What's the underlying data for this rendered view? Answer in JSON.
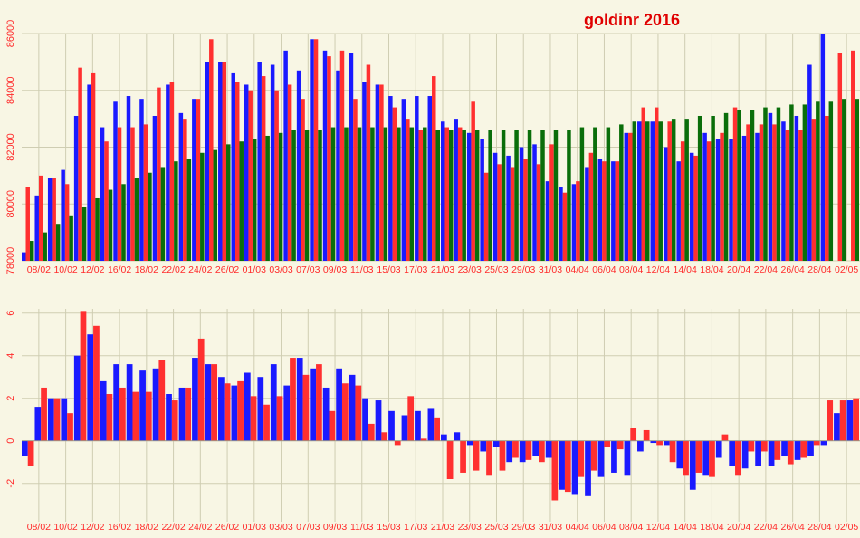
{
  "colors": {
    "background": "#f8f6e4",
    "grid": "#cfcdb2",
    "tick_text": "#ff2b2b",
    "title": "#e00000",
    "blue": "#1a1aff",
    "red": "#ff3030",
    "green": "#0a6e0a"
  },
  "chart_data": [
    {
      "type": "bar",
      "title": "goldinr 2016",
      "ylim": [
        78000,
        86000
      ],
      "yticks": [
        "78000",
        "80000",
        "82000",
        "84000",
        "86000"
      ],
      "xtick_labels": [
        "08/02",
        "10/02",
        "12/02",
        "16/02",
        "18/02",
        "22/02",
        "24/02",
        "26/02",
        "01/03",
        "03/03",
        "07/03",
        "09/03",
        "11/03",
        "15/03",
        "17/03",
        "21/03",
        "23/03",
        "25/03",
        "29/03",
        "31/03",
        "04/04",
        "06/04",
        "08/04",
        "12/04",
        "14/04",
        "18/04",
        "20/04",
        "22/04",
        "26/04",
        "28/04",
        "02/05"
      ],
      "grid": true,
      "series": [
        {
          "color": "blue",
          "values": [
            78300,
            80300,
            80900,
            81200,
            83100,
            84200,
            82700,
            83600,
            83800,
            83700,
            83100,
            84200,
            83200,
            83700,
            85000,
            85000,
            84600,
            84200,
            85000,
            84900,
            85400,
            84700,
            85800,
            85400,
            84700,
            85300,
            84300,
            84200,
            83800,
            83700,
            83800,
            83800,
            82900,
            83000,
            82500,
            82300,
            81800,
            81700,
            82000,
            82100,
            80800,
            80600,
            80700,
            81300,
            81600,
            81500,
            82500,
            82900,
            82900,
            82000,
            81500,
            81800,
            82500,
            82300,
            82300,
            82400,
            82500,
            83200,
            82900,
            83100,
            84900,
            86000
          ]
        },
        {
          "color": "red",
          "values": [
            80600,
            81000,
            80900,
            80700,
            84800,
            84600,
            82200,
            82700,
            82700,
            82800,
            84100,
            84300,
            83000,
            83700,
            85800,
            85000,
            84300,
            84000,
            84500,
            84000,
            84200,
            83700,
            85800,
            85200,
            85400,
            83700,
            84900,
            84200,
            83400,
            83000,
            82600,
            84500,
            82700,
            82700,
            83600,
            81100,
            81400,
            81300,
            81600,
            81400,
            82100,
            80400,
            80800,
            81800,
            81500,
            81500,
            82500,
            83400,
            83400,
            82900,
            82200,
            81700,
            82200,
            82500,
            83400,
            82800,
            82800,
            82800,
            82600,
            82600,
            83000,
            83100,
            85300,
            85400
          ]
        },
        {
          "color": "green",
          "values": [
            78700,
            79000,
            79300,
            79600,
            79900,
            80200,
            80500,
            80700,
            80900,
            81100,
            81300,
            81500,
            81600,
            81800,
            81900,
            82100,
            82200,
            82300,
            82400,
            82500,
            82600,
            82600,
            82600,
            82700,
            82700,
            82700,
            82700,
            82700,
            82700,
            82700,
            82700,
            82600,
            82600,
            82600,
            82600,
            82600,
            82600,
            82600,
            82600,
            82600,
            82600,
            82600,
            82700,
            82700,
            82700,
            82800,
            82900,
            82900,
            82900,
            83000,
            83000,
            83100,
            83100,
            83200,
            83300,
            83300,
            83400,
            83400,
            83500,
            83500,
            83600,
            83600,
            83700,
            83700
          ]
        }
      ]
    },
    {
      "type": "bar",
      "ylim": [
        -3.8,
        6.2
      ],
      "yticks": [
        "-2",
        "0",
        "2",
        "4",
        "6"
      ],
      "xtick_labels": [
        "08/02",
        "10/02",
        "12/02",
        "16/02",
        "18/02",
        "22/02",
        "24/02",
        "26/02",
        "01/03",
        "03/03",
        "07/03",
        "09/03",
        "11/03",
        "15/03",
        "17/03",
        "21/03",
        "23/03",
        "25/03",
        "29/03",
        "31/03",
        "04/04",
        "06/04",
        "08/04",
        "12/04",
        "14/04",
        "18/04",
        "20/04",
        "22/04",
        "26/04",
        "28/04",
        "02/05"
      ],
      "grid": true,
      "series": [
        {
          "color": "blue",
          "values": [
            -0.7,
            1.6,
            2.0,
            2.0,
            4.0,
            5.0,
            2.8,
            3.6,
            3.6,
            3.3,
            3.4,
            2.2,
            2.5,
            3.9,
            3.6,
            3.0,
            2.6,
            3.2,
            3.0,
            3.6,
            2.6,
            3.9,
            3.4,
            2.5,
            3.4,
            3.1,
            2.0,
            1.9,
            1.4,
            1.2,
            1.4,
            1.5,
            0.3,
            0.4,
            -0.2,
            -0.5,
            -0.3,
            -1.0,
            -1.0,
            -0.7,
            -0.8,
            -2.3,
            -2.5,
            -2.6,
            -1.7,
            -1.5,
            -1.6,
            -0.5,
            -0.1,
            -0.2,
            -1.3,
            -2.3,
            -1.6,
            -0.8,
            -1.2,
            -1.3,
            -1.2,
            -1.2,
            -0.7,
            -0.9,
            -0.7,
            -0.2,
            1.3,
            1.9
          ]
        },
        {
          "color": "red",
          "values": [
            -1.2,
            2.5,
            2.0,
            1.3,
            6.1,
            5.4,
            2.2,
            2.5,
            2.3,
            2.3,
            3.8,
            1.9,
            2.5,
            4.8,
            3.6,
            2.7,
            2.8,
            2.1,
            1.7,
            2.1,
            3.9,
            3.1,
            3.6,
            1.4,
            2.7,
            2.6,
            0.8,
            0.4,
            -0.2,
            2.1,
            0.1,
            1.1,
            -1.8,
            -1.5,
            -1.4,
            -1.6,
            -1.4,
            -0.8,
            -0.9,
            -1.0,
            -2.8,
            -2.4,
            -1.7,
            -1.4,
            -0.3,
            -0.4,
            0.6,
            0.5,
            -0.2,
            -1.0,
            -1.6,
            -1.5,
            -1.7,
            0.3,
            -1.6,
            -0.5,
            -0.5,
            -0.9,
            -1.1,
            -0.8,
            -0.2,
            1.9,
            1.9,
            2.0
          ]
        }
      ]
    }
  ]
}
